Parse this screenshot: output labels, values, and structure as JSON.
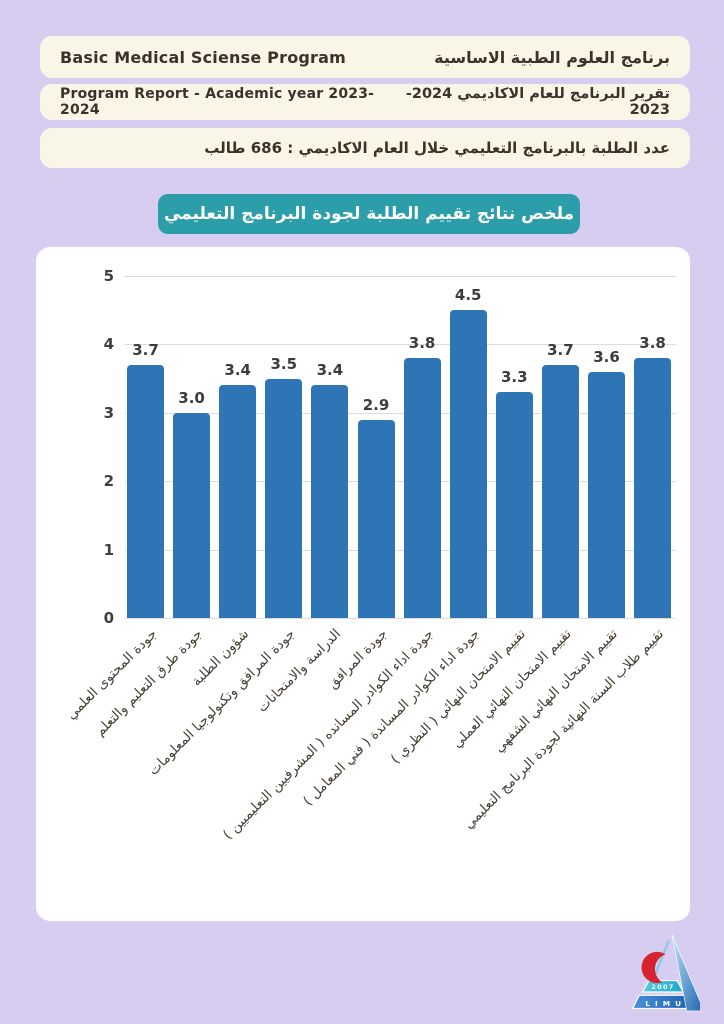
{
  "page": {
    "background": "#D6CDF1",
    "card_background": "#FFFFFF",
    "box_background": "#FAF6E7"
  },
  "header": {
    "row1": {
      "en": "Basic Medical Sciense Program",
      "ar": "برنامج العلوم الطبية الاساسية"
    },
    "row2": {
      "en": "Program Report - Academic year 2023-2024",
      "ar": "تقرير البرنامج للعام الاكاديمي 2024-2023"
    },
    "row3": {
      "ar": "عدد الطلبة بالبرنامج التعليمي خلال العام الاكاديمي :  686 طالب"
    }
  },
  "banner": {
    "title": "ملخص نتائج تقييم الطلبة لجودة البرنامج التعليمي",
    "background": "#2B9EA9"
  },
  "chart_data": {
    "type": "bar",
    "title": "ملخص نتائج تقييم الطلبة لجودة البرنامج التعليمي",
    "categories": [
      "جودة المحتوى العلمي",
      "جودة طرق التعليم والتعلم",
      "شؤون الطلبة",
      "جودة المرافق وتكنولوجيا المعلومات",
      "الدراسة والامتحانات",
      "جودة المرافق",
      "جودة اداء الكوادر المسانده ( المشرفيين التعليميين )",
      "جودة اداء الكوادر المساندة ( فني المعامل )",
      "تقييم الامتحان النهائي ( النظري )",
      "تقييم الامتحان النهائي العملي",
      "تقييم الامتحان النهائي الشفهي",
      "تقييم طلاب السنة النهائية لجودة البرنامج التعليمي"
    ],
    "values": [
      3.7,
      3.0,
      3.4,
      3.5,
      3.4,
      2.9,
      3.8,
      4.5,
      3.3,
      3.7,
      3.6,
      3.8
    ],
    "value_labels": [
      "3.7",
      "3.0",
      "3.4",
      "3.5",
      "3.4",
      "2.9",
      "3.8",
      "4.5",
      "3.3",
      "3.7",
      "3.6",
      "3.8"
    ],
    "xlabel": "",
    "ylabel": "",
    "ylim": [
      0,
      5
    ],
    "yticks": [
      0,
      1,
      2,
      3,
      4,
      5
    ],
    "grid": true,
    "legend": "none",
    "bar_color": "#2E75B6",
    "label_rotation_deg": 45
  },
  "logo": {
    "year": "2007",
    "name": "L I M U"
  }
}
